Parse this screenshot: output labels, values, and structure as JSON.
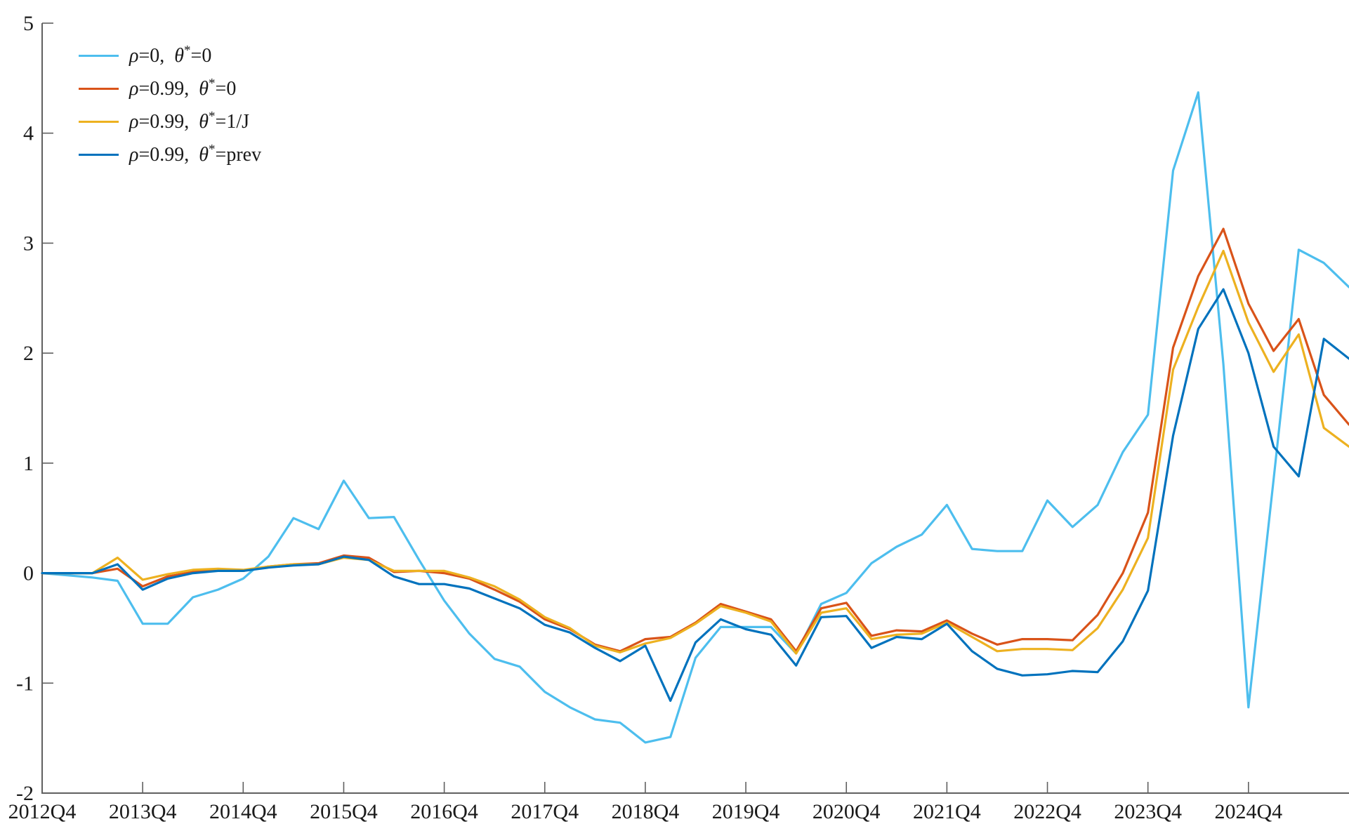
{
  "chart_data": {
    "type": "line",
    "title": "",
    "grid": false,
    "legend_position": "top-left-inside",
    "axis_color": "#606060",
    "tick_label_color": "#1a1a1a",
    "ylim": [
      -2,
      5
    ],
    "y_ticks": [
      5,
      4,
      3,
      2,
      1,
      0,
      -1,
      -2
    ],
    "x_tick_labels": [
      "2012Q4",
      "2013Q4",
      "2014Q4",
      "2015Q4",
      "2016Q4",
      "2017Q4",
      "2018Q4",
      "2019Q4",
      "2020Q4",
      "2021Q4",
      "2022Q4",
      "2023Q4",
      "2024Q4"
    ],
    "x_tick_indices": [
      0,
      4,
      8,
      12,
      16,
      20,
      24,
      28,
      32,
      36,
      40,
      44,
      48
    ],
    "categories": [
      "2012Q4",
      "2013Q1",
      "2013Q2",
      "2013Q3",
      "2013Q4",
      "2014Q1",
      "2014Q2",
      "2014Q3",
      "2014Q4",
      "2015Q1",
      "2015Q2",
      "2015Q3",
      "2015Q4",
      "2016Q1",
      "2016Q2",
      "2016Q3",
      "2016Q4",
      "2017Q1",
      "2017Q2",
      "2017Q3",
      "2017Q4",
      "2018Q1",
      "2018Q2",
      "2018Q3",
      "2018Q4",
      "2019Q1",
      "2019Q2",
      "2019Q3",
      "2019Q4",
      "2020Q1",
      "2020Q2",
      "2020Q3",
      "2020Q4",
      "2021Q1",
      "2021Q2",
      "2021Q3",
      "2021Q4",
      "2022Q1",
      "2022Q2",
      "2022Q3",
      "2022Q4",
      "2023Q1",
      "2023Q2",
      "2023Q3",
      "2023Q4",
      "2024Q1",
      "2024Q2",
      "2024Q3",
      "2024Q4",
      "2025Q1",
      "2025Q2",
      "2025Q3",
      "2025Q4"
    ],
    "symbols": {
      "rho": "ρ",
      "theta": "θ",
      "star": "*",
      "separator": ",  ",
      "equals": "="
    },
    "series": [
      {
        "name": "rho0-theta0",
        "legend": {
          "rho": "0",
          "theta": "0"
        },
        "color": "#4DBEEE",
        "line_width": 3.2,
        "values": [
          0,
          -0.02,
          -0.04,
          -0.07,
          -0.46,
          -0.46,
          -0.22,
          -0.15,
          -0.05,
          0.15,
          0.5,
          0.4,
          0.84,
          0.5,
          0.51,
          0.12,
          -0.25,
          -0.55,
          -0.78,
          -0.85,
          -1.08,
          -1.22,
          -1.33,
          -1.36,
          -1.54,
          -1.49,
          -0.77,
          -0.49,
          -0.49,
          -0.49,
          -0.73,
          -0.28,
          -0.18,
          0.09,
          0.24,
          0.35,
          0.62,
          0.22,
          0.2,
          0.2,
          0.66,
          0.42,
          0.62,
          1.1,
          1.44,
          3.66,
          4.37,
          1.9,
          -1.22,
          0.85,
          2.94,
          2.82,
          2.6
        ]
      },
      {
        "name": "rho099-theta0",
        "legend": {
          "rho": "0.99",
          "theta": "0"
        },
        "color": "#D95319",
        "line_width": 3.2,
        "values": [
          0,
          0,
          0,
          0.04,
          -0.12,
          -0.03,
          0.01,
          0.03,
          0.02,
          0.06,
          0.08,
          0.09,
          0.16,
          0.14,
          0.01,
          0.02,
          0,
          -0.05,
          -0.15,
          -0.26,
          -0.42,
          -0.51,
          -0.65,
          -0.71,
          -0.6,
          -0.58,
          -0.45,
          -0.28,
          -0.35,
          -0.42,
          -0.71,
          -0.32,
          -0.27,
          -0.57,
          -0.52,
          -0.53,
          -0.43,
          -0.55,
          -0.65,
          -0.6,
          -0.6,
          -0.61,
          -0.38,
          0,
          0.55,
          2.05,
          2.7,
          3.13,
          2.45,
          2.02,
          2.31,
          1.62,
          1.35
        ]
      },
      {
        "name": "rho099-theta1overJ",
        "legend": {
          "rho": "0.99",
          "theta": "1/J"
        },
        "color": "#EDB120",
        "line_width": 3.2,
        "values": [
          0,
          0,
          0,
          0.14,
          -0.06,
          -0.01,
          0.03,
          0.04,
          0.03,
          0.06,
          0.08,
          0.08,
          0.14,
          0.12,
          0.02,
          0.02,
          0.02,
          -0.04,
          -0.12,
          -0.24,
          -0.4,
          -0.5,
          -0.66,
          -0.72,
          -0.64,
          -0.59,
          -0.46,
          -0.3,
          -0.36,
          -0.44,
          -0.73,
          -0.36,
          -0.32,
          -0.6,
          -0.56,
          -0.55,
          -0.45,
          -0.58,
          -0.71,
          -0.69,
          -0.69,
          -0.7,
          -0.5,
          -0.15,
          0.32,
          1.85,
          2.42,
          2.93,
          2.28,
          1.83,
          2.17,
          1.32,
          1.15
        ]
      },
      {
        "name": "rho099-thetaprev",
        "legend": {
          "rho": "0.99",
          "theta": "prev"
        },
        "color": "#0072BD",
        "line_width": 3.2,
        "values": [
          0,
          0,
          0,
          0.08,
          -0.15,
          -0.05,
          0,
          0.02,
          0.02,
          0.05,
          0.07,
          0.08,
          0.15,
          0.12,
          -0.03,
          -0.1,
          -0.1,
          -0.14,
          -0.23,
          -0.32,
          -0.47,
          -0.54,
          -0.68,
          -0.8,
          -0.66,
          -1.16,
          -0.63,
          -0.42,
          -0.51,
          -0.56,
          -0.84,
          -0.4,
          -0.39,
          -0.68,
          -0.58,
          -0.6,
          -0.46,
          -0.71,
          -0.87,
          -0.93,
          -0.92,
          -0.89,
          -0.9,
          -0.62,
          -0.16,
          1.25,
          2.22,
          2.58,
          2.0,
          1.15,
          0.88,
          2.13,
          1.95
        ]
      }
    ]
  }
}
